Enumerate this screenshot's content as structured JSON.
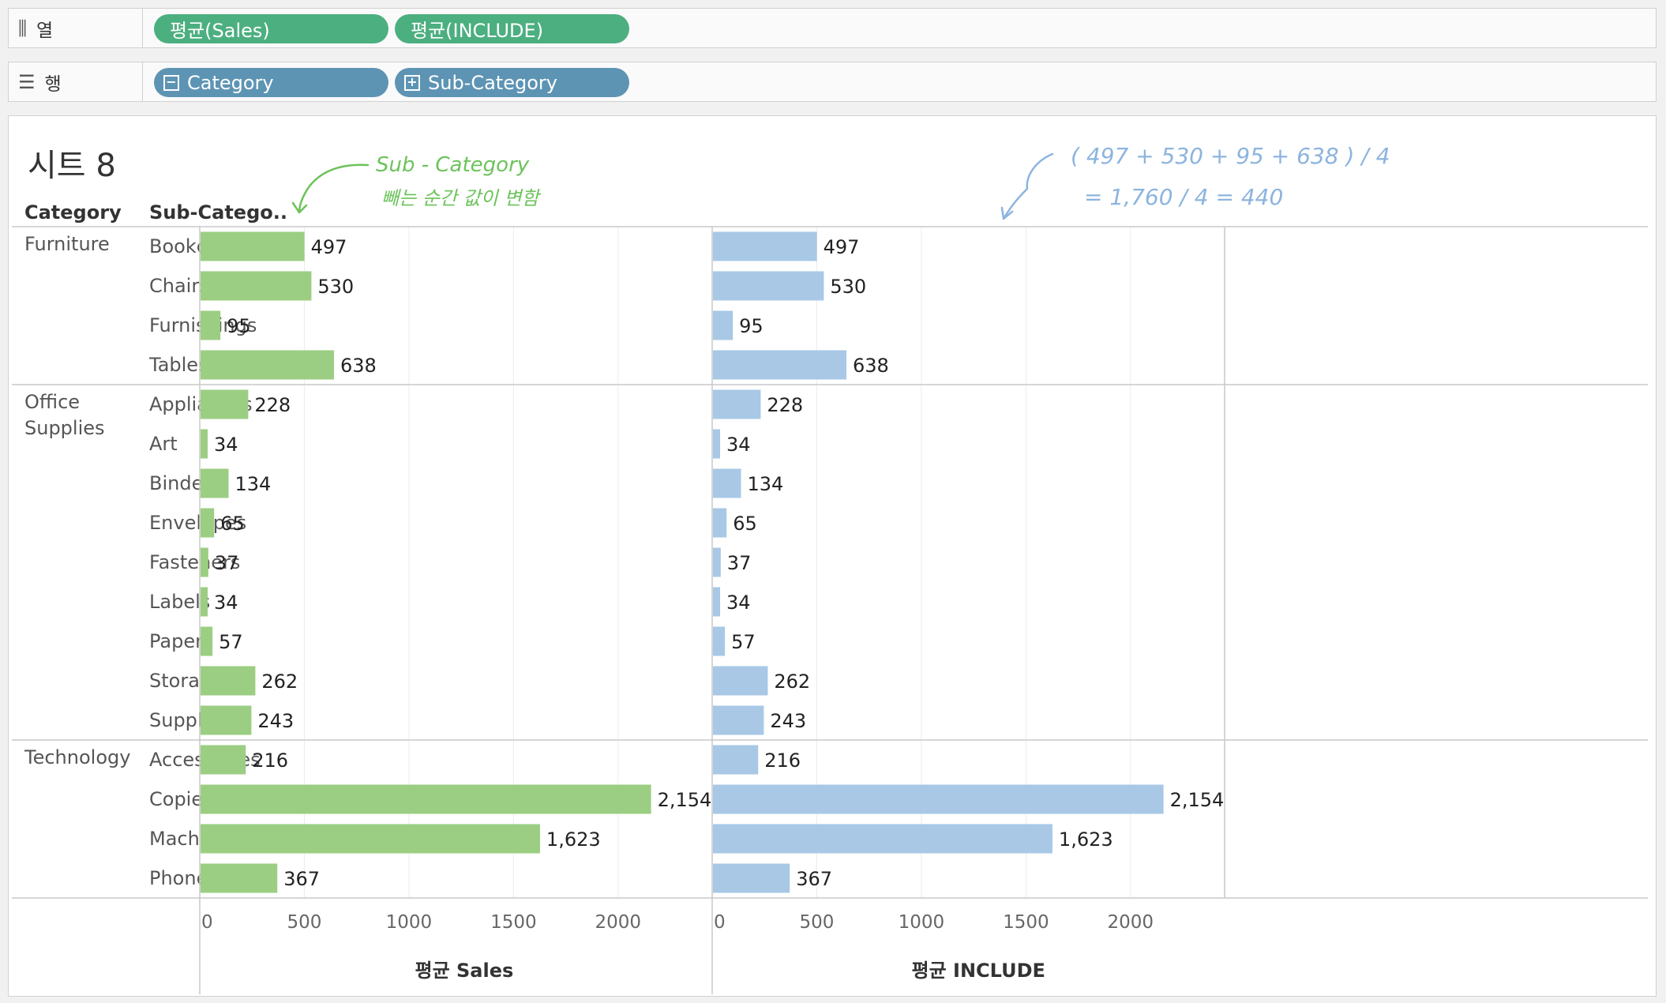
{
  "shelves": {
    "columns": {
      "icon": "columns-icon",
      "label": "열",
      "pills": [
        "평균(Sales)",
        "평균(INCLUDE)"
      ]
    },
    "rows": {
      "icon": "rows-icon",
      "label": "행",
      "pills": [
        "Category",
        "Sub-Category"
      ]
    }
  },
  "sheet": {
    "title": "시트 8",
    "header_category": "Category",
    "header_subcategory": "Sub-Catego..",
    "annotation_left": [
      "Sub - Category",
      "빼는 순간 값이 변함"
    ],
    "annotation_right": [
      "( 497 + 530 + 95 + 638 ) / 4",
      "= 1,760 / 4  = 440"
    ]
  },
  "colors": {
    "sales": "#9bce82",
    "include": "#a8c8e6",
    "pill_green": "#4caf80",
    "pill_blue": "#5d94b4",
    "annotation_green": "#6cc35a",
    "annotation_blue": "#8cb4df"
  },
  "chart_data": [
    {
      "type": "bar",
      "orientation": "horizontal",
      "xlabel": "평균 Sales",
      "xlim": [
        0,
        2450
      ],
      "xticks": [
        "0",
        "500",
        "1000",
        "1500",
        "2000"
      ],
      "groups": [
        {
          "category": "Furniture",
          "items": [
            {
              "sub": "Bookcases",
              "value": 497,
              "label": "497"
            },
            {
              "sub": "Chairs",
              "value": 530,
              "label": "530"
            },
            {
              "sub": "Furnishings",
              "value": 95,
              "label": "95"
            },
            {
              "sub": "Tables",
              "value": 638,
              "label": "638"
            }
          ]
        },
        {
          "category": "Office Supplies",
          "items": [
            {
              "sub": "Appliances",
              "value": 228,
              "label": "228"
            },
            {
              "sub": "Art",
              "value": 34,
              "label": "34"
            },
            {
              "sub": "Binders",
              "value": 134,
              "label": "134"
            },
            {
              "sub": "Envelopes",
              "value": 65,
              "label": "65"
            },
            {
              "sub": "Fasteners",
              "value": 37,
              "label": "37"
            },
            {
              "sub": "Labels",
              "value": 34,
              "label": "34"
            },
            {
              "sub": "Paper",
              "value": 57,
              "label": "57"
            },
            {
              "sub": "Storage",
              "value": 262,
              "label": "262"
            },
            {
              "sub": "Supplies",
              "value": 243,
              "label": "243"
            }
          ]
        },
        {
          "category": "Technology",
          "items": [
            {
              "sub": "Accessories",
              "value": 216,
              "label": "216"
            },
            {
              "sub": "Copiers",
              "value": 2154,
              "label": "2,154"
            },
            {
              "sub": "Machines",
              "value": 1623,
              "label": "1,623"
            },
            {
              "sub": "Phones",
              "value": 367,
              "label": "367"
            }
          ]
        }
      ]
    },
    {
      "type": "bar",
      "orientation": "horizontal",
      "xlabel": "평균 INCLUDE",
      "xlim": [
        0,
        2450
      ],
      "xticks": [
        "0",
        "500",
        "1000",
        "1500",
        "2000"
      ],
      "groups": [
        {
          "category": "Furniture",
          "items": [
            {
              "sub": "Bookcases",
              "value": 497,
              "label": "497"
            },
            {
              "sub": "Chairs",
              "value": 530,
              "label": "530"
            },
            {
              "sub": "Furnishings",
              "value": 95,
              "label": "95"
            },
            {
              "sub": "Tables",
              "value": 638,
              "label": "638"
            }
          ]
        },
        {
          "category": "Office Supplies",
          "items": [
            {
              "sub": "Appliances",
              "value": 228,
              "label": "228"
            },
            {
              "sub": "Art",
              "value": 34,
              "label": "34"
            },
            {
              "sub": "Binders",
              "value": 134,
              "label": "134"
            },
            {
              "sub": "Envelopes",
              "value": 65,
              "label": "65"
            },
            {
              "sub": "Fasteners",
              "value": 37,
              "label": "37"
            },
            {
              "sub": "Labels",
              "value": 34,
              "label": "34"
            },
            {
              "sub": "Paper",
              "value": 57,
              "label": "57"
            },
            {
              "sub": "Storage",
              "value": 262,
              "label": "262"
            },
            {
              "sub": "Supplies",
              "value": 243,
              "label": "243"
            }
          ]
        },
        {
          "category": "Technology",
          "items": [
            {
              "sub": "Accessories",
              "value": 216,
              "label": "216"
            },
            {
              "sub": "Copiers",
              "value": 2154,
              "label": "2,154"
            },
            {
              "sub": "Machines",
              "value": 1623,
              "label": "1,623"
            },
            {
              "sub": "Phones",
              "value": 367,
              "label": "367"
            }
          ]
        }
      ]
    }
  ]
}
